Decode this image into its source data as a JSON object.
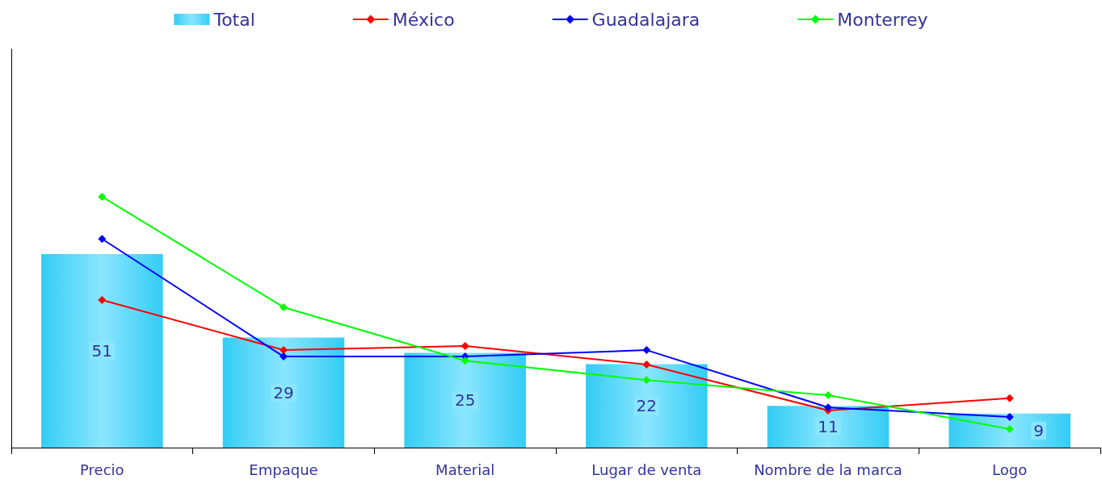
{
  "chart_data": {
    "type": "bar",
    "categories": [
      "Precio",
      "Empaque",
      "Material",
      "Lugar de venta",
      "Nombre de la marca",
      "Logo"
    ],
    "series": [
      {
        "name": "Total",
        "color": "#33ccf5",
        "values": [
          51,
          29,
          25,
          22,
          11,
          9
        ],
        "data_labels": true
      },
      {
        "name": "México",
        "type": "line",
        "color": "#ff0000",
        "values": [
          38.9,
          25.7,
          26.8,
          21.9,
          9.8,
          13.0
        ]
      },
      {
        "name": "Guadalajara",
        "type": "line",
        "color": "#0000ff",
        "values": [
          55.0,
          24.0,
          24.0,
          25.7,
          10.6,
          8.1
        ]
      },
      {
        "name": "Monterrey",
        "type": "line",
        "color": "#00ff00",
        "values": [
          66.1,
          37.0,
          22.9,
          17.8,
          13.8,
          4.9
        ]
      }
    ],
    "ylim": [
      0,
      105
    ],
    "tick_labels": "x",
    "grid": false,
    "legend": "top",
    "marker": "diamond",
    "line_style": "solid"
  }
}
